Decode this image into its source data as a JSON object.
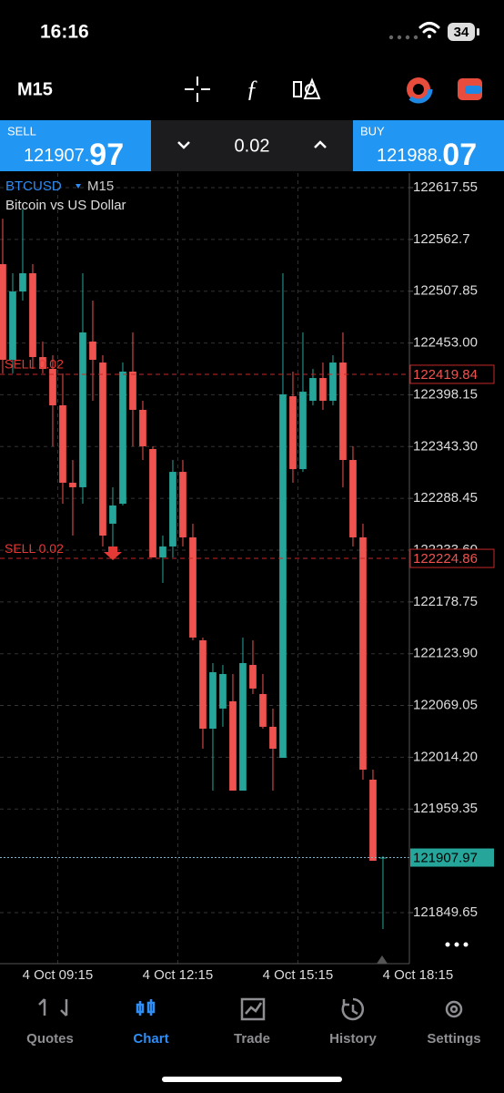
{
  "status_bar": {
    "time": "16:16",
    "battery": "34"
  },
  "toolbar": {
    "timeframe": "M15"
  },
  "trade": {
    "sell": {
      "label": "SELL",
      "price_main": "121907.",
      "price_big": "97"
    },
    "volume": "0.02",
    "buy": {
      "label": "BUY",
      "price_main": "121988.",
      "price_big": "07"
    }
  },
  "chart_data": {
    "type": "candlestick",
    "symbol": "BTCUSD",
    "timeframe": "M15",
    "description": "Bitcoin vs US Dollar",
    "open": [
      122536.5,
      122435.2,
      122507.6,
      122526.9,
      122438.1,
      122425.6,
      122387.0,
      122305.0,
      122300.2,
      122454.5,
      122432.3,
      122261.6,
      122282.8,
      122422.7,
      122382.2,
      122340.7,
      122225.9,
      122237.5,
      122316.5,
      122247.1,
      122138.1,
      122044.5,
      122065.8,
      122073.5,
      121978.9,
      122112.0,
      122081.2,
      122046.5,
      122013.6,
      122396.6,
      122319.4,
      122391.8,
      122415.9,
      122391.8,
      122432.3,
      122329.1,
      122247.1,
      121990.5,
      121907.5
    ],
    "high": [
      122584.7,
      122526.9,
      122594.4,
      122536.5,
      122454.5,
      122440.0,
      122420.8,
      122329.1,
      122526.9,
      122497.9,
      122440.0,
      122300.2,
      122432.3,
      122464.2,
      122391.8,
      122343.6,
      122249.0,
      122329.1,
      122329.1,
      122261.6,
      122141.0,
      122114.0,
      122112.0,
      122102.4,
      122141.0,
      122138.1,
      122102.4,
      122065.8,
      122526.9,
      122422.7,
      122464.2,
      122425.6,
      122432.3,
      122440.0,
      122464.2,
      122343.6,
      122261.6,
      122001.1,
      121909.5
    ],
    "low": [
      122420.8,
      122420.8,
      122497.9,
      122425.6,
      122420.8,
      122343.6,
      122282.8,
      122249.0,
      122282.8,
      122391.8,
      122237.5,
      122237.5,
      122280.9,
      122343.6,
      122329.1,
      122225.9,
      122198.9,
      122225.9,
      122237.5,
      122138.1,
      122023.3,
      121978.9,
      122046.5,
      121978.9,
      121978.9,
      122081.2,
      122044.5,
      121978.9,
      122013.6,
      122305.0,
      122316.5,
      122387.0,
      122382.2,
      122387.0,
      122300.2,
      122237.5,
      121990.5,
      121904.6,
      121832.3
    ],
    "close": [
      122435.2,
      122507.6,
      122526.9,
      122438.1,
      122425.6,
      122387.0,
      122305.0,
      122300.2,
      122464.2,
      122435.2,
      122249.0,
      122280.9,
      122422.7,
      122382.2,
      122343.6,
      122225.9,
      122237.5,
      122316.5,
      122247.1,
      122141.0,
      122044.5,
      122104.3,
      122102.4,
      121978.9,
      122114.0,
      122087.0,
      122046.5,
      122023.3,
      122398.6,
      122319.4,
      122401.4,
      122415.9,
      122391.8,
      122432.3,
      122329.1,
      122247.1,
      122001.1,
      121904.6,
      121907.97
    ],
    "up_color": "#26a69a",
    "down_color": "#ef5350",
    "ylim": [
      121795.6,
      122633.0
    ],
    "yticks": [
      122617.55,
      122562.7,
      {
        "value": 122507.85,
        "label": "122507.85"
      },
      {
        "value": 122453.0,
        "label": "122453.00"
      },
      {
        "value": 122398.15,
        "label": "122398.15"
      },
      {
        "value": 122343.3,
        "label": "122343.30"
      },
      {
        "value": 122288.45,
        "label": "122288.45"
      },
      {
        "value": 122233.6,
        "label": "122233.60"
      },
      {
        "value": 122178.75,
        "label": "122178.75"
      },
      {
        "value": 122123.9,
        "label": "122123.90"
      },
      {
        "value": 122069.05,
        "label": "122069.05"
      },
      {
        "value": 122014.2,
        "label": "122014.20"
      },
      {
        "value": 121959.35,
        "label": "121959.35"
      },
      {
        "value": 121849.65,
        "label": "121849.65"
      }
    ],
    "xlim": [
      -0.27,
      40.64
    ],
    "xticks": [
      {
        "value": 5.5,
        "label": "4 Oct 09:15"
      },
      {
        "value": 17.5,
        "label": "4 Oct 12:15"
      },
      {
        "value": 29.5,
        "label": "4 Oct 15:15"
      },
      {
        "value": 41.5,
        "label": "4 Oct 18:15"
      }
    ],
    "grid": true,
    "orders": [
      {
        "label": "SELL 0.02",
        "value": 122419.84
      },
      {
        "label": "SELL 0.02",
        "value": 122224.86
      }
    ],
    "current_price": 121907.97
  },
  "tabs": [
    "Quotes",
    "Chart",
    "Trade",
    "History",
    "Settings"
  ],
  "active_tab": 1
}
